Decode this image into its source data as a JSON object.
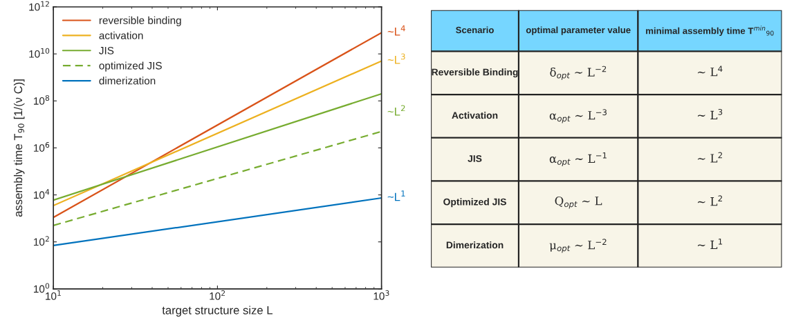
{
  "chart_data": [
    {
      "type": "line",
      "xlabel": "target structure size L",
      "ylabel": "assembly time T$_{90}$ [1/(ν C)]",
      "x": [
        10,
        1000
      ],
      "log": "xy",
      "grid": false,
      "legend": "top left",
      "xlim": [
        10,
        1000
      ],
      "xticks": [
        {
          "value": 10,
          "label": "10$^{1}$"
        },
        {
          "value": 100,
          "label": "10$^{2}$"
        },
        {
          "value": 1000,
          "label": "10$^{3}$"
        }
      ],
      "ylim": [
        1,
        1000000000000.0
      ],
      "yticks": [
        {
          "value": 1,
          "label": "10$^{0}$"
        },
        {
          "value": 100,
          "label": "10$^{2}$"
        },
        {
          "value": 10000,
          "label": "10$^{4}$"
        },
        {
          "value": 1000000,
          "label": "10$^{6}$"
        },
        {
          "value": 100000000,
          "label": "10$^{8}$"
        },
        {
          "value": 10000000000,
          "label": "10$^{10}$"
        },
        {
          "value": 1000000000000,
          "label": "10$^{12}$"
        }
      ],
      "series": [
        {
          "name": "reversible binding",
          "color": "#d95319",
          "values": [
            1100,
            80000000000
          ],
          "line_style": "solid"
        },
        {
          "name": "activation",
          "color": "#edb120",
          "values": [
            3500,
            5000000000
          ],
          "line_style": "solid"
        },
        {
          "name": "JIS",
          "color": "#77ac30",
          "values": [
            6000,
            200000000
          ],
          "line_style": "solid"
        },
        {
          "name": "optimized JIS",
          "color": "#77ac30",
          "values": [
            500,
            5000000
          ],
          "line_style": "dashed"
        },
        {
          "name": "dimerization",
          "color": "#0072bd",
          "values": [
            70,
            7400
          ],
          "line_style": "solid"
        }
      ],
      "annotations": [
        "~L$^{4}$",
        "~L$^{3}$",
        "~L$^{2}$",
        "~L$^{1}$"
      ]
    },
    {
      "type": "other",
      "annotations": [
        "Scenario",
        "optimal parameter value",
        "minimal assembly time T$^{min}$$_{90}$",
        "Reversible Binding",
        "δ$_{opt}$ ~ L$^{−2}$",
        "~ L$^{4}$",
        "Activation",
        "α$_{opt}$ ~ L$^{−3}$",
        "~ L$^{3}$",
        "JIS",
        "α$_{opt}$ ~ L$^{−1}$",
        "~ L$^{2}$",
        "Optimized JIS",
        "Q$_{opt}$ ~ L",
        "~ L$^{2}$",
        "Dimerization",
        "μ$_{opt}$ ~ L$^{−2}$",
        "~ L$^{1}$"
      ]
    }
  ]
}
